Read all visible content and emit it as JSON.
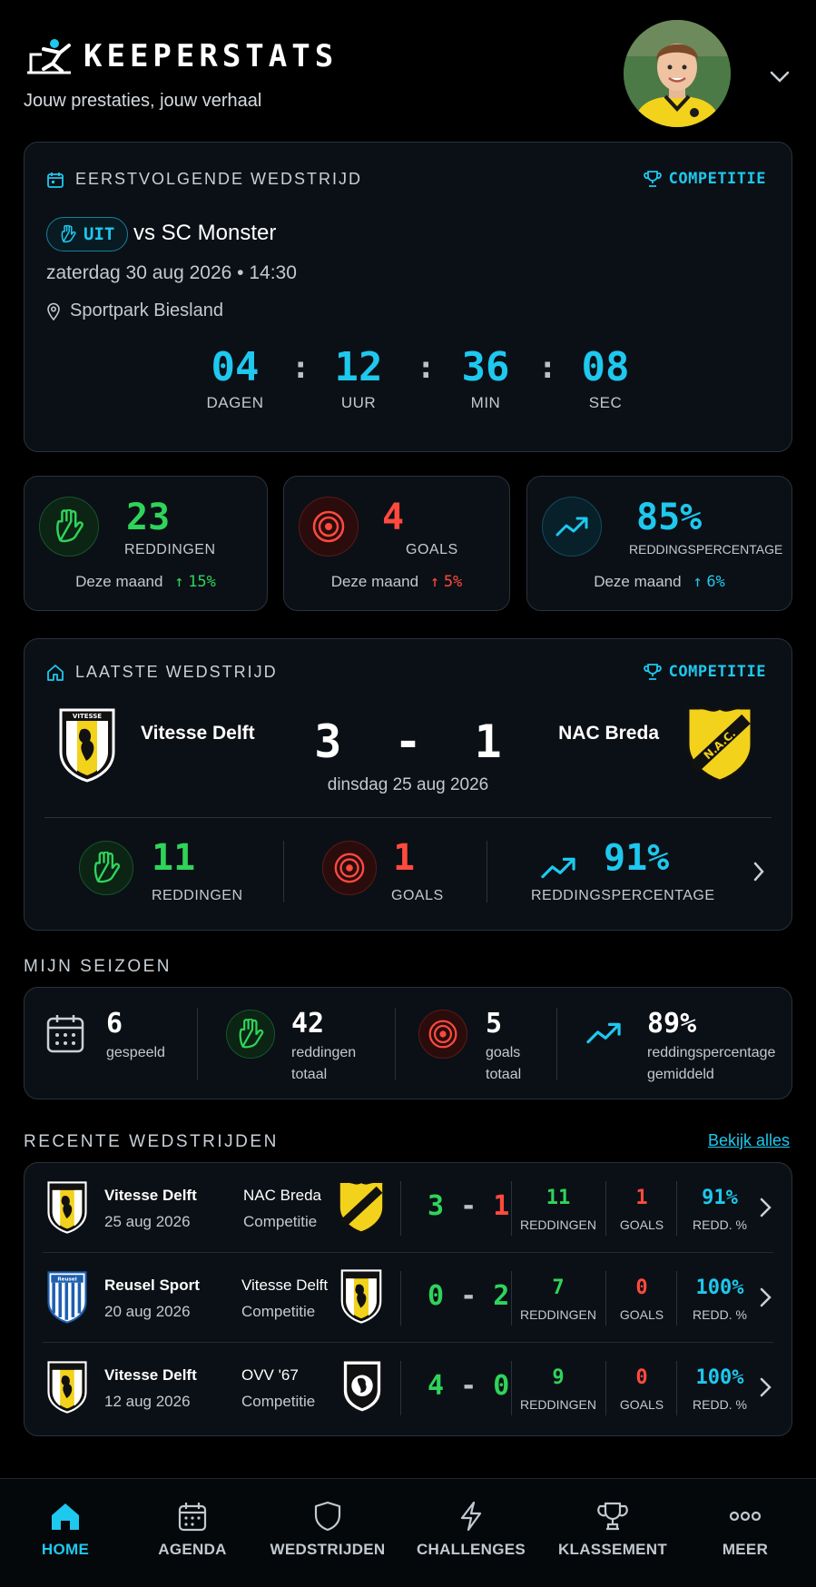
{
  "app": {
    "name": "KEEPERSTATS",
    "tagline": "Jouw prestaties, jouw verhaal"
  },
  "next_match": {
    "section_label": "EERSTVOLGENDE WEDSTRIJD",
    "competition": "COMPETITIE",
    "venue_tag": "UIT",
    "opponent": "vs SC Monster",
    "datetime": "zaterdag 30 aug 2026 • 14:30",
    "location": "Sportpark Biesland",
    "countdown": [
      {
        "value": "04",
        "label": "DAGEN"
      },
      {
        "value": "12",
        "label": "UUR"
      },
      {
        "value": "36",
        "label": "MIN"
      },
      {
        "value": "08",
        "label": "SEC"
      }
    ],
    "separator": ":"
  },
  "month_stats": [
    {
      "value": "23",
      "label": "REDDINGEN",
      "period": "Deze maand",
      "delta": "15%",
      "color": "#2fd45a"
    },
    {
      "value": "4",
      "label": "GOALS",
      "period": "Deze maand",
      "delta": "5%",
      "color": "#ff4a3d"
    },
    {
      "value": "85%",
      "label": "REDDINGSPERCENTAGE",
      "period": "Deze maand",
      "delta": "6%",
      "color": "#1ec8ee"
    }
  ],
  "last_match": {
    "section_label": "LAATSTE WEDSTRIJD",
    "competition": "COMPETITIE",
    "home_team": "Vitesse Delft",
    "away_team": "NAC Breda",
    "home_score": "3",
    "away_score": "1",
    "score_separator": "-",
    "date": "dinsdag 25 aug 2026",
    "saves_value": "11",
    "saves_label": "REDDINGEN",
    "goals_value": "1",
    "goals_label": "GOALS",
    "pct_value": "91%",
    "pct_label": "REDDINGSPERCENTAGE"
  },
  "season": {
    "title": "MIJN SEIZOEN",
    "items": [
      {
        "value": "6",
        "label1": "gespeeld",
        "label2": ""
      },
      {
        "value": "42",
        "label1": "reddingen",
        "label2": "totaal"
      },
      {
        "value": "5",
        "label1": "goals",
        "label2": "totaal"
      },
      {
        "value": "89%",
        "label1": "reddingspercentage",
        "label2": "gemiddeld"
      }
    ]
  },
  "recent": {
    "title": "RECENTE WEDSTRIJDEN",
    "view_all": "Bekijk alles",
    "saves_label": "REDDINGEN",
    "goals_label": "GOALS",
    "pct_label": "REDD. %",
    "rows": [
      {
        "home": "Vitesse Delft",
        "date": "25 aug 2026",
        "away": "NAC Breda",
        "type": "Competitie",
        "score_home": "3",
        "score_away": "1",
        "sep": "-",
        "saves": "11",
        "goals": "1",
        "pct": "91%"
      },
      {
        "home": "Reusel Sport",
        "date": "20 aug 2026",
        "away": "Vitesse Delft",
        "type": "Competitie",
        "score_home": "0",
        "score_away": "2",
        "sep": "-",
        "saves": "7",
        "goals": "0",
        "pct": "100%"
      },
      {
        "home": "Vitesse Delft",
        "date": "12 aug 2026",
        "away": "OVV '67",
        "type": "Competitie",
        "score_home": "4",
        "score_away": "0",
        "sep": "-",
        "saves": "9",
        "goals": "0",
        "pct": "100%"
      }
    ]
  },
  "nav": [
    {
      "label": "HOME",
      "icon": "home-icon",
      "active": true
    },
    {
      "label": "AGENDA",
      "icon": "calendar-icon",
      "active": false
    },
    {
      "label": "WEDSTRIJDEN",
      "icon": "shield-icon",
      "active": false
    },
    {
      "label": "CHALLENGES",
      "icon": "lightning-icon",
      "active": false
    },
    {
      "label": "KLASSEMENT",
      "icon": "trophy-icon",
      "active": false
    },
    {
      "label": "MEER",
      "icon": "more-icon",
      "active": false
    }
  ],
  "colors": {
    "accent": "#1ec8ee",
    "success": "#2fd45a",
    "danger": "#ff4a3d",
    "card_bg": "#0b1016",
    "border": "#2a323b"
  },
  "logo_lettering": {
    "vitesse_crest": "VITESSE",
    "nac_crest": "N.A.C.",
    "reusel_crest": "Reusel"
  }
}
